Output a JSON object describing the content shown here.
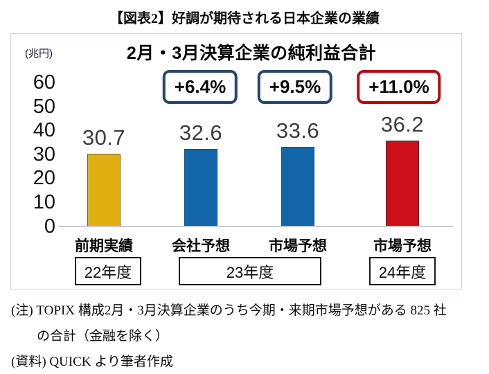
{
  "page_title": "【図表2】好調が期待される日本企業の業績",
  "panel": {
    "unit_label": "(兆円)"
  },
  "chart_data": {
    "type": "bar",
    "title": "2月・3月決算企業の純利益合計",
    "ylabel": "兆円",
    "ylim": [
      0,
      60
    ],
    "y_ticks": [
      "60",
      "50",
      "40",
      "30",
      "20",
      "10",
      "0"
    ],
    "grid": "off",
    "categories": [
      "前期実績",
      "会社予想",
      "市場予想",
      "市場予想"
    ],
    "values": [
      30.7,
      32.6,
      33.6,
      36.2
    ],
    "value_labels": [
      "30.7",
      "32.6",
      "33.6",
      "36.2"
    ],
    "bar_colors": [
      "#E0AF12",
      "#1365A9",
      "#1365A9",
      "#CE0F1B"
    ],
    "bar_border_colors": [
      "#656538",
      "#114e82",
      "#114e82",
      "#33334d"
    ],
    "growth_badges": [
      {
        "label": "+6.4%",
        "border_color": "#25496b",
        "over_category": "会社予想"
      },
      {
        "label": "+9.5%",
        "border_color": "#25496b",
        "over_category": "市場予想"
      },
      {
        "label": "+11.0%",
        "border_color": "#b9090f",
        "over_category": "市場予想(24年度)"
      }
    ],
    "fiscal_year_groups": [
      {
        "label": "22年度",
        "bars": [
          0
        ]
      },
      {
        "label": "23年度",
        "bars": [
          1,
          2
        ]
      },
      {
        "label": "24年度",
        "bars": [
          3
        ]
      }
    ]
  },
  "notes": {
    "note_line1": "(注) TOPIX 構成2月・3月決算企業のうち今期・来期市場予想がある 825 社",
    "note_line2": "の合計（金融を除く）",
    "source_line": "(資料) QUICK より筆者作成"
  }
}
